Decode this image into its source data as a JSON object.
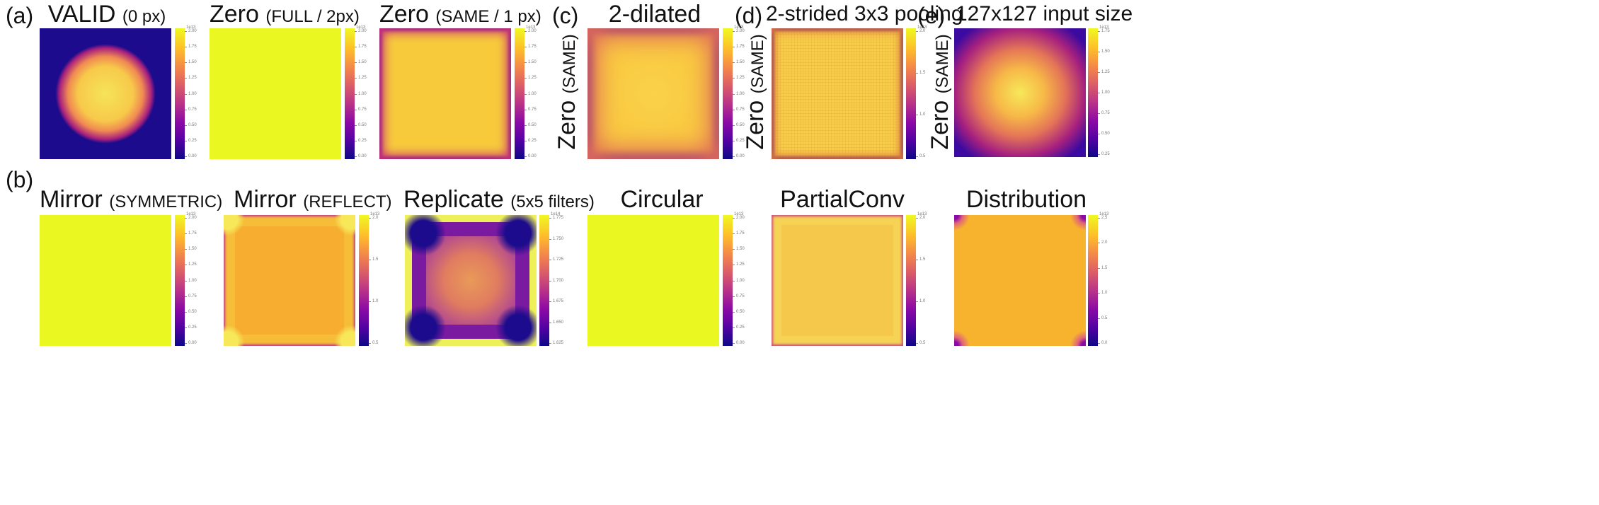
{
  "colors": {
    "plasma_yellow": "#f0f921",
    "plasma_orange": "#f7a72e",
    "plasma_dark": "#1c0b8c",
    "text": "#111111"
  },
  "labels": {
    "a": "(a)",
    "b": "(b)",
    "c": "(c)",
    "d": "(d)",
    "e": "(e)"
  },
  "row_a": {
    "valid": {
      "title": "VALID",
      "note": "(0 px)"
    },
    "zero_full": {
      "title": "Zero",
      "note": "(FULL / 2px)"
    },
    "zero_same": {
      "title": "Zero",
      "note": "(SAME / 1 px)"
    },
    "dilated": {
      "title": "2-dilated"
    },
    "strided": {
      "title": "2-strided 3x3 pooling"
    },
    "input127": {
      "title": "127x127 input size"
    }
  },
  "row_label": {
    "title": "Zero",
    "note": "(SAME)"
  },
  "row_b": {
    "mirror_sym": {
      "title": "Mirror",
      "note": "(SYMMETRIC)"
    },
    "mirror_ref": {
      "title": "Mirror",
      "note": "(REFLECT)"
    },
    "replicate": {
      "title": "Replicate",
      "note": "(5x5 filters)"
    },
    "circular": {
      "title": "Circular"
    },
    "partialconv": {
      "title": "PartialConv"
    },
    "distribution": {
      "title": "Distribution"
    }
  },
  "colorbars": {
    "exp_a": "1e13",
    "exp_b": "1e14",
    "ticks_a": [
      "2.00",
      "1.75",
      "1.50",
      "1.25",
      "1.00",
      "0.75",
      "0.50",
      "0.25",
      "0.00"
    ],
    "ticks_b": [
      "2.0",
      "1.5",
      "1.0",
      "0.5"
    ],
    "ticks_c": [
      "1.75",
      "1.50",
      "1.25",
      "1.00",
      "0.75",
      "0.50",
      "0.25"
    ],
    "ticks_d": [
      "1.775",
      "1.750",
      "1.725",
      "1.700",
      "1.675",
      "1.650",
      "1.625"
    ],
    "ticks_e": [
      "2.5",
      "2.0",
      "1.5",
      "1.0",
      "0.5",
      "0.0"
    ]
  }
}
